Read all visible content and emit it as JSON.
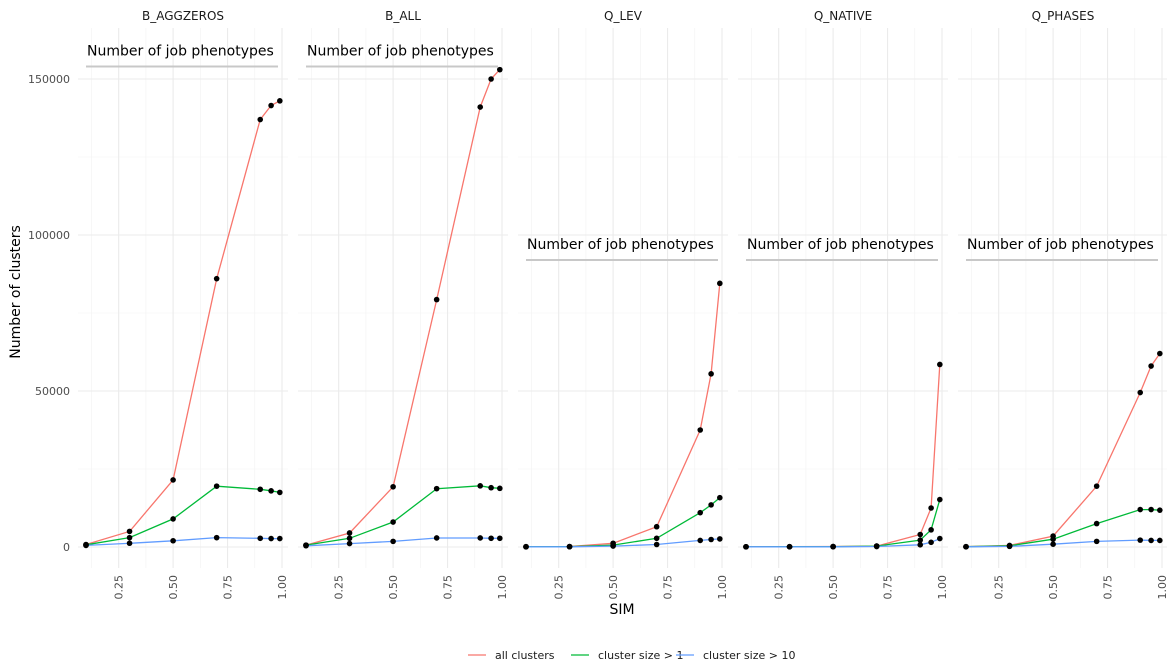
{
  "chart_data": {
    "type": "line",
    "facet_by": [
      "B_AGGZEROS",
      "B_ALL",
      "Q_LEV",
      "Q_NATIVE",
      "Q_PHASES"
    ],
    "xlabel": "SIM",
    "ylabel": "Number of clusters",
    "xlim": [
      0.1,
      1.0
    ],
    "ylim": [
      0,
      160000
    ],
    "xticks": [
      "0.25",
      "0.50",
      "0.75",
      "1.00"
    ],
    "xtick_values": [
      0.25,
      0.5,
      0.75,
      1.0
    ],
    "yticks": [
      "0",
      "50000",
      "100000",
      "150000"
    ],
    "ytick_values": [
      0,
      50000,
      100000,
      150000
    ],
    "grid": true,
    "legend_position": "bottom",
    "annotation": "Number of job phenotypes",
    "annotation_y": [
      154000,
      154000,
      92000,
      92000,
      92000
    ],
    "x": [
      0.1,
      0.3,
      0.5,
      0.7,
      0.9,
      0.95,
      0.99
    ],
    "series": [
      {
        "name": "all clusters",
        "color": "#F8766D",
        "values_by_facet": [
          [
            800,
            5000,
            21500,
            86000,
            137000,
            141500,
            143000
          ],
          [
            600,
            4500,
            19300,
            79300,
            141000,
            150000,
            153000
          ],
          [
            100,
            150,
            1200,
            6500,
            37500,
            55500,
            84500
          ],
          [
            80,
            100,
            150,
            300,
            4000,
            12500,
            58500
          ],
          [
            100,
            500,
            3500,
            19500,
            49500,
            58000,
            62000
          ]
        ]
      },
      {
        "name": "cluster size > 1",
        "color": "#00BA38",
        "values_by_facet": [
          [
            700,
            3000,
            9000,
            19500,
            18500,
            18000,
            17500
          ],
          [
            600,
            2800,
            8000,
            18700,
            19600,
            19000,
            18800
          ],
          [
            100,
            120,
            600,
            2800,
            11000,
            13500,
            15800
          ],
          [
            80,
            100,
            130,
            300,
            2200,
            5500,
            15200
          ],
          [
            100,
            400,
            2500,
            7500,
            12000,
            12000,
            11800
          ]
        ]
      },
      {
        "name": "cluster size > 10",
        "color": "#619CFF",
        "values_by_facet": [
          [
            500,
            1200,
            2000,
            3000,
            2800,
            2700,
            2700
          ],
          [
            400,
            1100,
            1800,
            2900,
            2900,
            2800,
            2800
          ],
          [
            50,
            80,
            300,
            800,
            2100,
            2400,
            2600
          ],
          [
            50,
            60,
            80,
            150,
            700,
            1500,
            2700
          ],
          [
            60,
            200,
            900,
            1800,
            2200,
            2100,
            2100
          ]
        ]
      }
    ]
  }
}
